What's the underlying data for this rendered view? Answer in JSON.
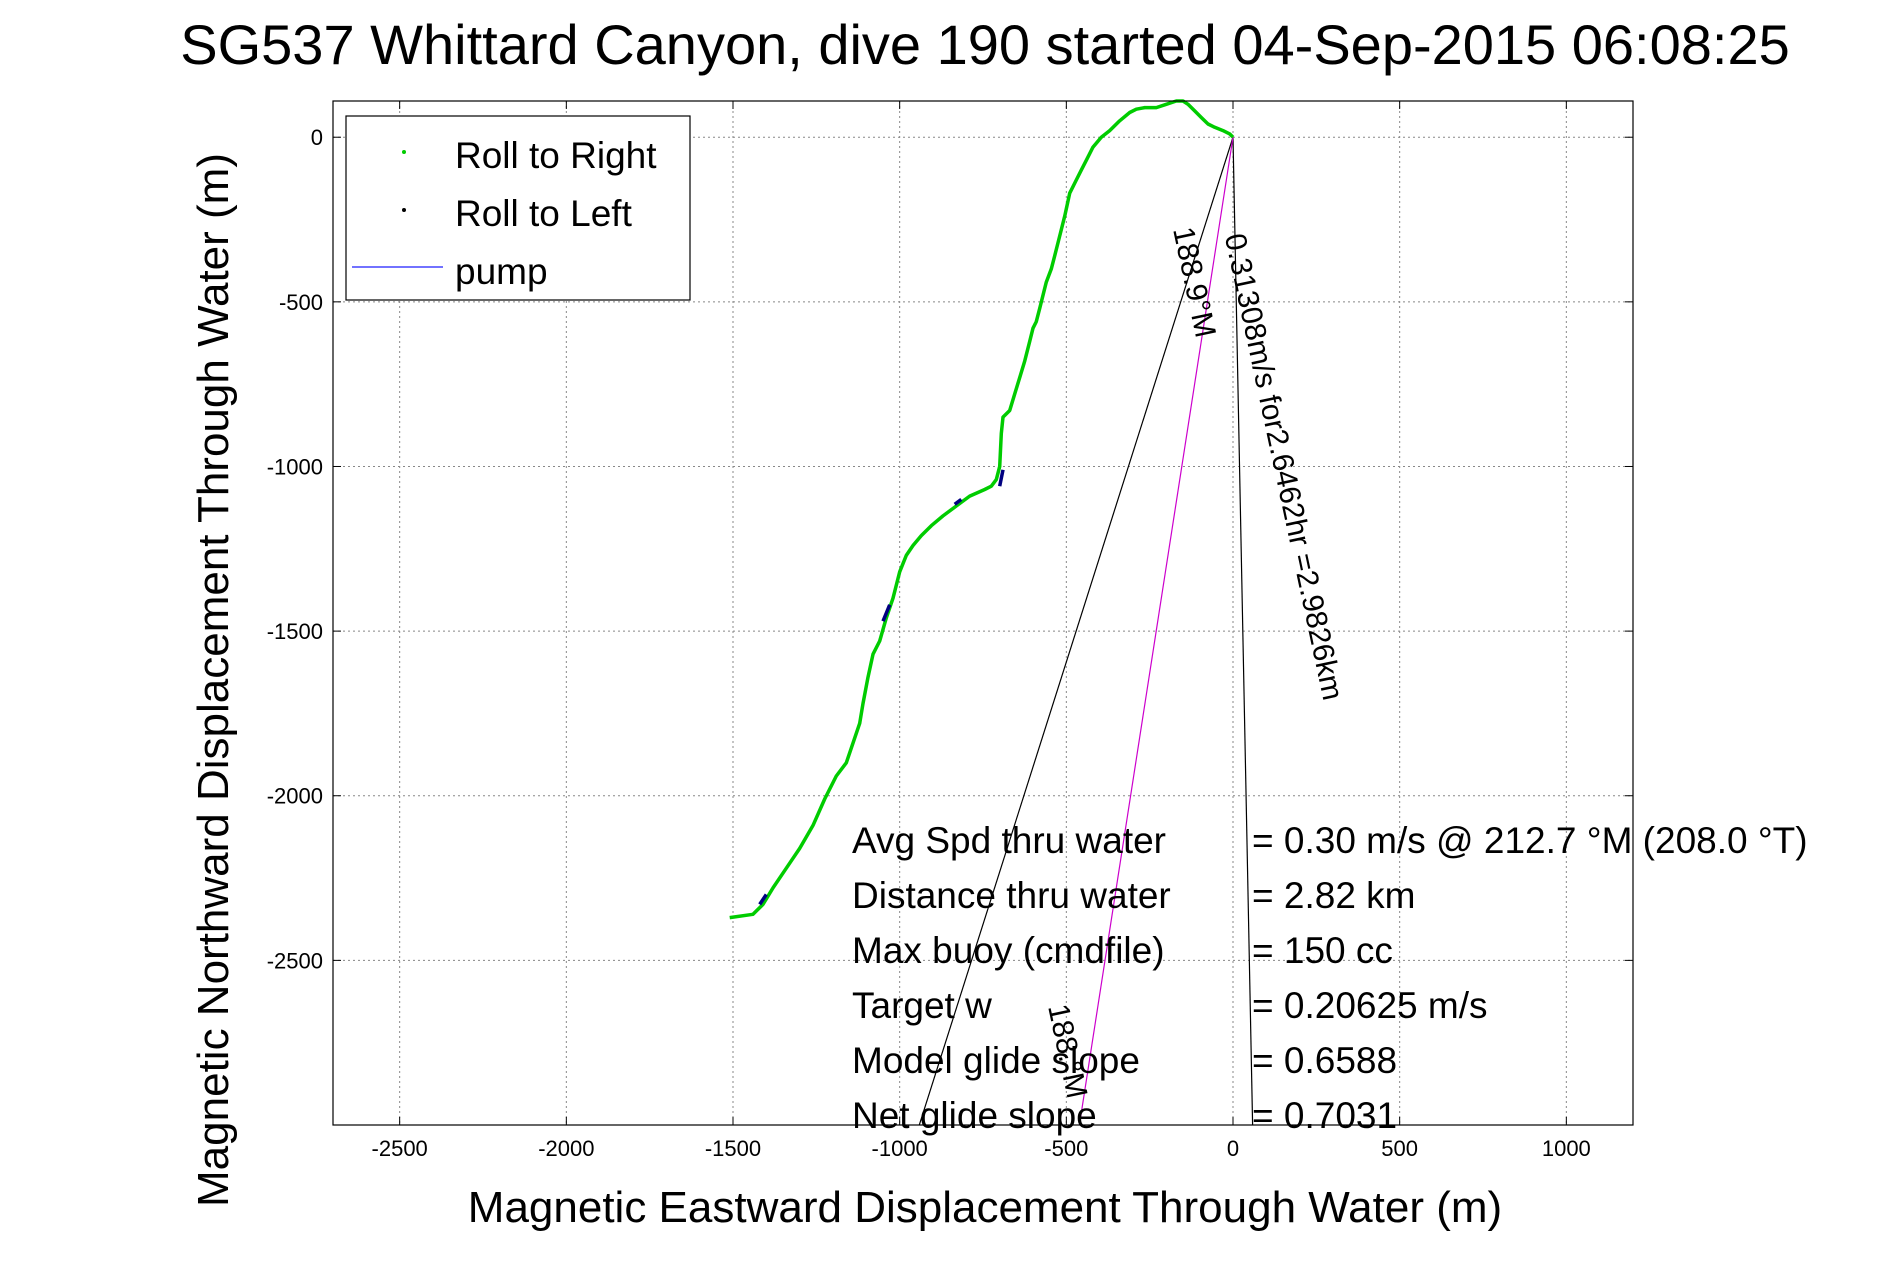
{
  "chart_data": {
    "type": "line",
    "title": "SG537 Whittard Canyon, dive 190 started 04-Sep-2015 06:08:25",
    "xlabel": "Magnetic Eastward Displacement Through Water (m)",
    "ylabel": "Magnetic Northward Displacement Through Water (m)",
    "xlim": [
      -2700,
      1200
    ],
    "ylim": [
      -3000,
      110
    ],
    "x_ticks": [
      -2500,
      -2000,
      -1500,
      -1000,
      -500,
      0,
      500,
      1000
    ],
    "y_ticks": [
      0,
      -500,
      -1000,
      -1500,
      -2000,
      -2500
    ],
    "grid": true,
    "legend_position": "top-left",
    "legend": [
      "Roll to Right",
      "Roll to Left",
      "pump"
    ],
    "colors": {
      "roll_right": "#00cc00",
      "roll_left": "#000080",
      "pump": "#4444ff",
      "magenta_line": "#cc00cc",
      "lines": "#000000"
    },
    "series": [
      {
        "name": "Roll to Right",
        "x": [
          -1510,
          -1440,
          -1410,
          -1380,
          -1340,
          -1300,
          -1260,
          -1225,
          -1190,
          -1160,
          -1140,
          -1120,
          -1110,
          -1095,
          -1080,
          -1060,
          -1040,
          -1020,
          -1000,
          -980,
          -960,
          -935,
          -905,
          -870,
          -830,
          -790,
          -745,
          -725,
          -710,
          -700,
          -695,
          -690,
          -670,
          -655,
          -640,
          -625,
          -610,
          -600,
          -590,
          -580,
          -560,
          -545,
          -535,
          -520,
          -505,
          -490,
          -470,
          -455,
          -440,
          -420,
          -395,
          -370,
          -340,
          -310,
          -290,
          -265,
          -230,
          -200,
          -170,
          -150,
          -135,
          -115,
          -95,
          -75,
          -55,
          -30,
          -10,
          0
        ],
        "y": [
          -2370,
          -2360,
          -2330,
          -2280,
          -2220,
          -2160,
          -2090,
          -2010,
          -1940,
          -1900,
          -1840,
          -1780,
          -1720,
          -1640,
          -1570,
          -1530,
          -1460,
          -1400,
          -1320,
          -1270,
          -1240,
          -1210,
          -1180,
          -1150,
          -1120,
          -1090,
          -1070,
          -1060,
          -1040,
          -1000,
          -900,
          -850,
          -830,
          -780,
          -730,
          -680,
          -620,
          -580,
          -560,
          -520,
          -440,
          -400,
          -360,
          -300,
          -240,
          -170,
          -130,
          -100,
          -70,
          -30,
          0,
          20,
          50,
          75,
          85,
          90,
          90,
          100,
          110,
          110,
          100,
          80,
          60,
          40,
          30,
          20,
          10,
          0
        ]
      },
      {
        "name": "Roll to Left",
        "segments": [
          {
            "x": [
              -1420,
              -1400
            ],
            "y": [
              -2330,
              -2300
            ]
          },
          {
            "x": [
              -1050,
              -1030
            ],
            "y": [
              -1470,
              -1420
            ]
          },
          {
            "x": [
              -835,
              -815
            ],
            "y": [
              -1115,
              -1100
            ]
          },
          {
            "x": [
              -700,
              -690
            ],
            "y": [
              -1060,
              -1010
            ]
          }
        ]
      }
    ],
    "reference_lines": [
      {
        "x": [
          0,
          -960
        ],
        "y": [
          0,
          -3060
        ]
      },
      {
        "x": [
          0,
          60
        ],
        "y": [
          0,
          -3060
        ]
      },
      {
        "x": [
          0,
          -470
        ],
        "y": [
          0,
          -3060
        ],
        "color": "magenta"
      }
    ],
    "annotations": [
      {
        "text": "0.31308m/s for2.6462hr =2.9826km",
        "x": -25,
        "y": -300,
        "rotation": 78
      },
      {
        "text": "188.9°M",
        "x": -180,
        "y": -280,
        "rotation": 78
      },
      {
        "text": "188.°M",
        "x": -555,
        "y": -2640,
        "rotation": 78
      }
    ]
  },
  "summary": {
    "rows": [
      {
        "label": "Avg Spd thru water",
        "value": "=  0.30 m/s @ 212.7 °M (208.0 °T)"
      },
      {
        "label": "Distance thru water",
        "value": "=  2.82 km"
      },
      {
        "label": "Max buoy (cmdfile)",
        "value": "= 150 cc"
      },
      {
        "label": "Target w",
        "value": "= 0.20625 m/s"
      },
      {
        "label": "Model glide slope",
        "value": "= 0.6588"
      },
      {
        "label": "Net glide slope",
        "value": "= 0.7031"
      }
    ]
  }
}
